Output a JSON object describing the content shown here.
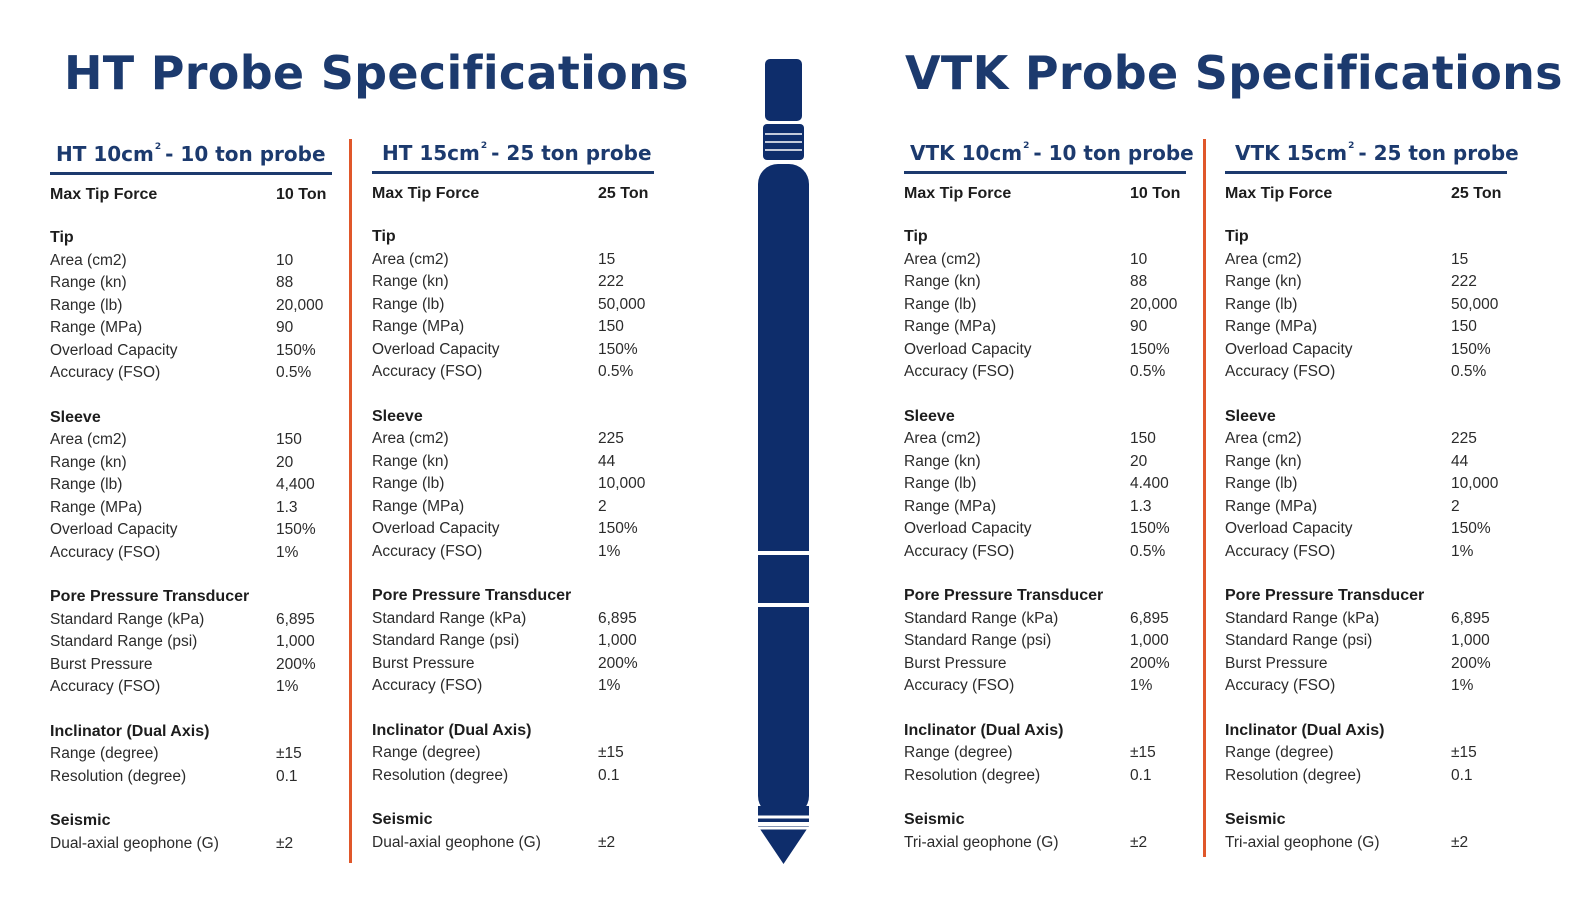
{
  "ht_title": "HT Probe Specifications",
  "vtk_title": "VTK Probe Specifications",
  "columns": [
    {
      "title_a": "HT 10cm",
      "title_sup": "2",
      "title_b": "- 10 ton probe",
      "max_label": "Max Tip Force",
      "max_value": "10 Ton",
      "sections": [
        {
          "name": "Tip",
          "rows": [
            [
              "Area (cm2)",
              "10"
            ],
            [
              "Range (kn)",
              "88"
            ],
            [
              "Range (lb)",
              "20,000"
            ],
            [
              "Range (MPa)",
              "90"
            ],
            [
              "Overload Capacity",
              "150%"
            ],
            [
              "Accuracy (FSO)",
              "0.5%"
            ]
          ]
        },
        {
          "name": "Sleeve",
          "rows": [
            [
              "Area (cm2)",
              "150"
            ],
            [
              "Range (kn)",
              "20"
            ],
            [
              "Range (lb)",
              "4,400"
            ],
            [
              "Range (MPa)",
              "1.3"
            ],
            [
              "Overload Capacity",
              "150%"
            ],
            [
              "Accuracy (FSO)",
              "1%"
            ]
          ]
        },
        {
          "name": "Pore Pressure Transducer",
          "rows": [
            [
              "Standard Range (kPa)",
              "6,895"
            ],
            [
              "Standard Range (psi)",
              "1,000"
            ],
            [
              "Burst Pressure",
              "200%"
            ],
            [
              "Accuracy (FSO)",
              "1%"
            ]
          ]
        },
        {
          "name": "Inclinator (Dual Axis)",
          "rows": [
            [
              "Range (degree)",
              "±15"
            ],
            [
              "Resolution (degree)",
              "0.1"
            ]
          ]
        },
        {
          "name": "Seismic",
          "rows": [
            [
              "Dual-axial geophone (G)",
              "±2"
            ]
          ]
        }
      ]
    },
    {
      "title_a": "HT 15cm",
      "title_sup": "2",
      "title_b": "- 25 ton probe",
      "max_label": "Max Tip Force",
      "max_value": "25 Ton",
      "sections": [
        {
          "name": "Tip",
          "rows": [
            [
              "Area (cm2)",
              "15"
            ],
            [
              "Range (kn)",
              "222"
            ],
            [
              "Range (lb)",
              "50,000"
            ],
            [
              "Range (MPa)",
              "150"
            ],
            [
              "Overload Capacity",
              "150%"
            ],
            [
              "Accuracy (FSO)",
              "0.5%"
            ]
          ]
        },
        {
          "name": "Sleeve",
          "rows": [
            [
              "Area (cm2)",
              "225"
            ],
            [
              "Range (kn)",
              "44"
            ],
            [
              "Range (lb)",
              "10,000"
            ],
            [
              "Range (MPa)",
              "2"
            ],
            [
              "Overload Capacity",
              "150%"
            ],
            [
              "Accuracy (FSO)",
              "1%"
            ]
          ]
        },
        {
          "name": "Pore Pressure Transducer",
          "rows": [
            [
              "Standard Range (kPa)",
              "6,895"
            ],
            [
              "Standard Range (psi)",
              "1,000"
            ],
            [
              "Burst Pressure",
              "200%"
            ],
            [
              "Accuracy (FSO)",
              "1%"
            ]
          ]
        },
        {
          "name": "Inclinator (Dual Axis)",
          "rows": [
            [
              "Range (degree)",
              "±15"
            ],
            [
              "Resolution (degree)",
              "0.1"
            ]
          ]
        },
        {
          "name": "Seismic",
          "rows": [
            [
              "Dual-axial geophone (G)",
              "±2"
            ]
          ]
        }
      ]
    },
    {
      "title_a": "VTK 10cm",
      "title_sup": "2",
      "title_b": "- 10 ton probe",
      "max_label": "Max Tip Force",
      "max_value": "10 Ton",
      "sections": [
        {
          "name": "Tip",
          "rows": [
            [
              "Area (cm2)",
              "10"
            ],
            [
              "Range (kn)",
              "88"
            ],
            [
              "Range (lb)",
              "20,000"
            ],
            [
              "Range (MPa)",
              "90"
            ],
            [
              "Overload Capacity",
              "150%"
            ],
            [
              "Accuracy (FSO)",
              "0.5%"
            ]
          ]
        },
        {
          "name": "Sleeve",
          "rows": [
            [
              "Area (cm2)",
              "150"
            ],
            [
              "Range (kn)",
              "20"
            ],
            [
              "Range (lb)",
              "4.400"
            ],
            [
              "Range (MPa)",
              "1.3"
            ],
            [
              "Overload Capacity",
              "150%"
            ],
            [
              "Accuracy (FSO)",
              "0.5%"
            ]
          ]
        },
        {
          "name": "Pore Pressure Transducer",
          "rows": [
            [
              "Standard Range (kPa)",
              "6,895"
            ],
            [
              "Standard Range (psi)",
              "1,000"
            ],
            [
              "Burst Pressure",
              "200%"
            ],
            [
              "Accuracy (FSO)",
              "1%"
            ]
          ]
        },
        {
          "name": "Inclinator (Dual Axis)",
          "rows": [
            [
              "Range (degree)",
              "±15"
            ],
            [
              "Resolution (degree)",
              "0.1"
            ]
          ]
        },
        {
          "name": "Seismic",
          "rows": [
            [
              "Tri-axial geophone (G)",
              "±2"
            ]
          ]
        }
      ]
    },
    {
      "title_a": "VTK 15cm",
      "title_sup": "2",
      "title_b": "- 25 ton probe",
      "max_label": "Max Tip Force",
      "max_value": "25 Ton",
      "sections": [
        {
          "name": "Tip",
          "rows": [
            [
              "Area (cm2)",
              "15"
            ],
            [
              "Range (kn)",
              "222"
            ],
            [
              "Range (lb)",
              "50,000"
            ],
            [
              "Range (MPa)",
              "150"
            ],
            [
              "Overload Capacity",
              "150%"
            ],
            [
              "Accuracy (FSO)",
              "0.5%"
            ]
          ]
        },
        {
          "name": "Sleeve",
          "rows": [
            [
              "Area (cm2)",
              "225"
            ],
            [
              "Range (kn)",
              "44"
            ],
            [
              "Range (lb)",
              "10,000"
            ],
            [
              "Range (MPa)",
              "2"
            ],
            [
              "Overload Capacity",
              "150%"
            ],
            [
              "Accuracy (FSO)",
              "1%"
            ]
          ]
        },
        {
          "name": "Pore Pressure Transducer",
          "rows": [
            [
              "Standard Range (kPa)",
              "6,895"
            ],
            [
              "Standard Range (psi)",
              "1,000"
            ],
            [
              "Burst Pressure",
              "200%"
            ],
            [
              "Accuracy (FSO)",
              "1%"
            ]
          ]
        },
        {
          "name": "Inclinator (Dual Axis)",
          "rows": [
            [
              "Range (degree)",
              "±15"
            ],
            [
              "Resolution (degree)",
              "0.1"
            ]
          ]
        },
        {
          "name": "Seismic",
          "rows": [
            [
              "Tri-axial geophone (G)",
              "±2"
            ]
          ]
        }
      ]
    }
  ],
  "colors": {
    "navy": "#1c3a6e",
    "probe": "#0e2d6b",
    "accent": "#e0572a"
  }
}
